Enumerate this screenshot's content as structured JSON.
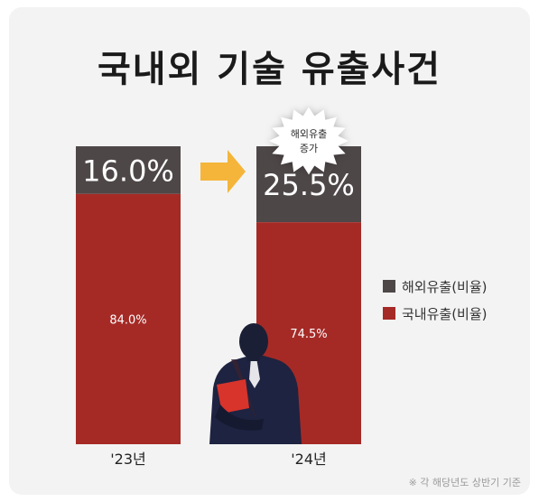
{
  "title": "국내외 기술 유출사건",
  "badge": {
    "line1": "해외유출",
    "line2": "증가"
  },
  "footnote": "※ 각 해당년도 상반기 기준",
  "colors": {
    "overseas": "#4e4748",
    "domestic": "#a52a26",
    "arrow": "#f4b53a",
    "badge_burst": "#ffffff",
    "badge_text": "#2b2b2b"
  },
  "chart_data": {
    "type": "bar",
    "stacked": true,
    "categories": [
      "'23년",
      "'24년"
    ],
    "series": [
      {
        "name": "해외유출(비율)",
        "values": [
          16.0,
          25.5
        ],
        "labels": [
          "16.0%",
          "25.5%"
        ]
      },
      {
        "name": "국내유출(비율)",
        "values": [
          84.0,
          74.5
        ],
        "labels": [
          "84.0%",
          "74.5%"
        ]
      }
    ],
    "ylim": [
      0,
      100
    ],
    "legend_position": "right",
    "grid": false
  }
}
